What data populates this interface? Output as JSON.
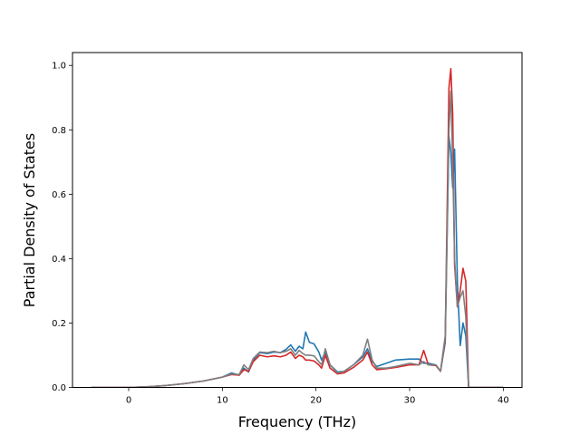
{
  "chart_data": {
    "type": "line",
    "title": "",
    "xlabel": "Frequency (THz)",
    "ylabel": "Partial Density of States",
    "xlim": [
      -6,
      42
    ],
    "ylim": [
      0,
      1.04
    ],
    "xticks": [
      0,
      10,
      20,
      30,
      40
    ],
    "yticks": [
      0.0,
      0.2,
      0.4,
      0.6,
      0.8,
      1.0
    ],
    "xtick_labels": [
      "0",
      "10",
      "20",
      "30",
      "40"
    ],
    "ytick_labels": [
      "0.0",
      "0.2",
      "0.4",
      "0.6",
      "0.8",
      "1.0"
    ],
    "grid": false,
    "legend": "none",
    "series": [
      {
        "color": "#1f77b4",
        "points": [
          [
            -4,
            0
          ],
          [
            0,
            0
          ],
          [
            2,
            0.002
          ],
          [
            4,
            0.006
          ],
          [
            6,
            0.012
          ],
          [
            8,
            0.02
          ],
          [
            10,
            0.032
          ],
          [
            11,
            0.045
          ],
          [
            11.8,
            0.038
          ],
          [
            12.3,
            0.06
          ],
          [
            12.8,
            0.048
          ],
          [
            13.3,
            0.085
          ],
          [
            14,
            0.108
          ],
          [
            14.8,
            0.105
          ],
          [
            15.5,
            0.11
          ],
          [
            16.2,
            0.108
          ],
          [
            16.8,
            0.118
          ],
          [
            17.3,
            0.132
          ],
          [
            17.8,
            0.112
          ],
          [
            18.2,
            0.128
          ],
          [
            18.6,
            0.12
          ],
          [
            18.9,
            0.172
          ],
          [
            19.3,
            0.14
          ],
          [
            19.8,
            0.135
          ],
          [
            20.3,
            0.11
          ],
          [
            20.6,
            0.085
          ],
          [
            21,
            0.11
          ],
          [
            21.5,
            0.07
          ],
          [
            22.3,
            0.048
          ],
          [
            23,
            0.05
          ],
          [
            24,
            0.07
          ],
          [
            25,
            0.095
          ],
          [
            25.5,
            0.12
          ],
          [
            26,
            0.08
          ],
          [
            26.5,
            0.065
          ],
          [
            27.5,
            0.075
          ],
          [
            28.5,
            0.085
          ],
          [
            30,
            0.088
          ],
          [
            31,
            0.088
          ],
          [
            31.5,
            0.075
          ],
          [
            32,
            0.075
          ],
          [
            32.8,
            0.07
          ],
          [
            33.3,
            0.05
          ],
          [
            33.8,
            0.14
          ],
          [
            34.2,
            0.78
          ],
          [
            34.4,
            0.73
          ],
          [
            34.6,
            0.62
          ],
          [
            34.8,
            0.74
          ],
          [
            35.1,
            0.33
          ],
          [
            35.4,
            0.13
          ],
          [
            35.7,
            0.2
          ],
          [
            36,
            0.16
          ],
          [
            36.3,
            0
          ],
          [
            40,
            0
          ]
        ]
      },
      {
        "color": "#d62728",
        "points": [
          [
            -4,
            0
          ],
          [
            0,
            0
          ],
          [
            2,
            0.002
          ],
          [
            4,
            0.006
          ],
          [
            6,
            0.012
          ],
          [
            8,
            0.02
          ],
          [
            10,
            0.032
          ],
          [
            11,
            0.04
          ],
          [
            11.8,
            0.038
          ],
          [
            12.3,
            0.055
          ],
          [
            12.8,
            0.05
          ],
          [
            13.3,
            0.08
          ],
          [
            14,
            0.1
          ],
          [
            14.8,
            0.095
          ],
          [
            15.5,
            0.098
          ],
          [
            16.2,
            0.095
          ],
          [
            16.8,
            0.1
          ],
          [
            17.3,
            0.11
          ],
          [
            17.8,
            0.09
          ],
          [
            18.2,
            0.1
          ],
          [
            18.6,
            0.095
          ],
          [
            18.9,
            0.085
          ],
          [
            19.3,
            0.085
          ],
          [
            19.8,
            0.082
          ],
          [
            20.3,
            0.07
          ],
          [
            20.6,
            0.06
          ],
          [
            21,
            0.1
          ],
          [
            21.5,
            0.06
          ],
          [
            22.3,
            0.042
          ],
          [
            23,
            0.045
          ],
          [
            24,
            0.062
          ],
          [
            25,
            0.085
          ],
          [
            25.5,
            0.11
          ],
          [
            26,
            0.07
          ],
          [
            26.5,
            0.055
          ],
          [
            27.5,
            0.058
          ],
          [
            28.5,
            0.062
          ],
          [
            30,
            0.07
          ],
          [
            31,
            0.07
          ],
          [
            31.5,
            0.115
          ],
          [
            32,
            0.07
          ],
          [
            32.8,
            0.068
          ],
          [
            33.3,
            0.05
          ],
          [
            33.8,
            0.15
          ],
          [
            34.2,
            0.93
          ],
          [
            34.4,
            0.99
          ],
          [
            34.6,
            0.85
          ],
          [
            34.8,
            0.38
          ],
          [
            35.1,
            0.25
          ],
          [
            35.4,
            0.3
          ],
          [
            35.7,
            0.37
          ],
          [
            36,
            0.33
          ],
          [
            36.3,
            0
          ],
          [
            40,
            0
          ]
        ]
      },
      {
        "color": "#7f7f7f",
        "points": [
          [
            -4,
            0
          ],
          [
            0,
            0
          ],
          [
            2,
            0.002
          ],
          [
            4,
            0.006
          ],
          [
            6,
            0.012
          ],
          [
            8,
            0.02
          ],
          [
            10,
            0.032
          ],
          [
            11,
            0.042
          ],
          [
            11.8,
            0.04
          ],
          [
            12.3,
            0.07
          ],
          [
            12.8,
            0.055
          ],
          [
            13.3,
            0.09
          ],
          [
            14,
            0.11
          ],
          [
            14.8,
            0.108
          ],
          [
            15.5,
            0.112
          ],
          [
            16.2,
            0.108
          ],
          [
            16.8,
            0.112
          ],
          [
            17.3,
            0.12
          ],
          [
            17.8,
            0.1
          ],
          [
            18.2,
            0.115
          ],
          [
            18.6,
            0.105
          ],
          [
            18.9,
            0.1
          ],
          [
            19.3,
            0.1
          ],
          [
            19.8,
            0.098
          ],
          [
            20.3,
            0.08
          ],
          [
            20.6,
            0.07
          ],
          [
            21,
            0.12
          ],
          [
            21.5,
            0.07
          ],
          [
            22.3,
            0.045
          ],
          [
            23,
            0.05
          ],
          [
            24,
            0.07
          ],
          [
            25,
            0.1
          ],
          [
            25.5,
            0.15
          ],
          [
            26,
            0.085
          ],
          [
            26.5,
            0.06
          ],
          [
            27.5,
            0.06
          ],
          [
            28.5,
            0.065
          ],
          [
            30,
            0.075
          ],
          [
            31,
            0.07
          ],
          [
            31.5,
            0.08
          ],
          [
            32,
            0.07
          ],
          [
            32.8,
            0.07
          ],
          [
            33.3,
            0.05
          ],
          [
            33.8,
            0.16
          ],
          [
            34.2,
            0.8
          ],
          [
            34.4,
            0.92
          ],
          [
            34.6,
            0.7
          ],
          [
            34.8,
            0.4
          ],
          [
            35.1,
            0.25
          ],
          [
            35.4,
            0.28
          ],
          [
            35.7,
            0.3
          ],
          [
            36,
            0.22
          ],
          [
            36.3,
            0
          ],
          [
            40,
            0
          ]
        ]
      }
    ]
  }
}
